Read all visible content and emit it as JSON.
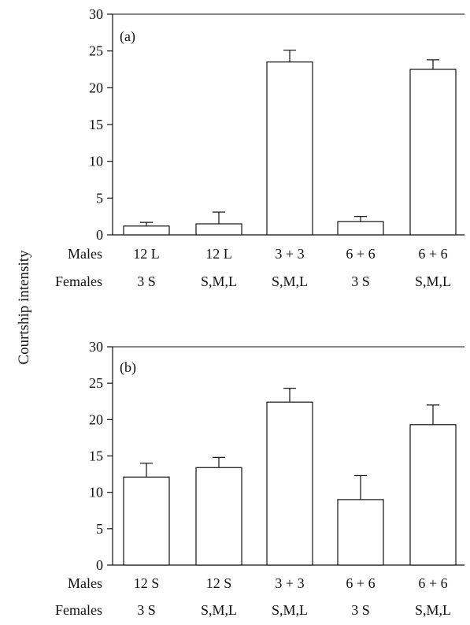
{
  "ylabel": "Courtship intensity",
  "row_labels": {
    "males": "Males",
    "females": "Females"
  },
  "chart_data": [
    {
      "type": "bar",
      "panel": "(a)",
      "ylim": [
        0,
        30
      ],
      "yticks": [
        "0",
        "5",
        "10",
        "15",
        "20",
        "25",
        "30"
      ],
      "males": [
        "12 L",
        "12 L",
        "3 + 3",
        "6 + 6",
        "6 + 6"
      ],
      "females": [
        "3 S",
        "S,M,L",
        "S,M,L",
        "3 S",
        "S,M,L"
      ],
      "values": [
        1.2,
        1.5,
        23.5,
        1.8,
        22.5
      ],
      "errors": [
        0.5,
        1.6,
        1.6,
        0.7,
        1.3
      ],
      "ylabel": "Courtship intensity"
    },
    {
      "type": "bar",
      "panel": "(b)",
      "ylim": [
        0,
        30
      ],
      "yticks": [
        "0",
        "5",
        "10",
        "15",
        "20",
        "25",
        "30"
      ],
      "males": [
        "12 S",
        "12 S",
        "3 + 3",
        "6 + 6",
        "6 + 6"
      ],
      "females": [
        "3 S",
        "S,M,L",
        "S,M,L",
        "3 S",
        "S,M,L"
      ],
      "values": [
        12.1,
        13.4,
        22.4,
        9.0,
        19.3
      ],
      "errors": [
        1.9,
        1.4,
        1.9,
        3.3,
        2.7
      ],
      "ylabel": "Courtship intensity"
    }
  ]
}
